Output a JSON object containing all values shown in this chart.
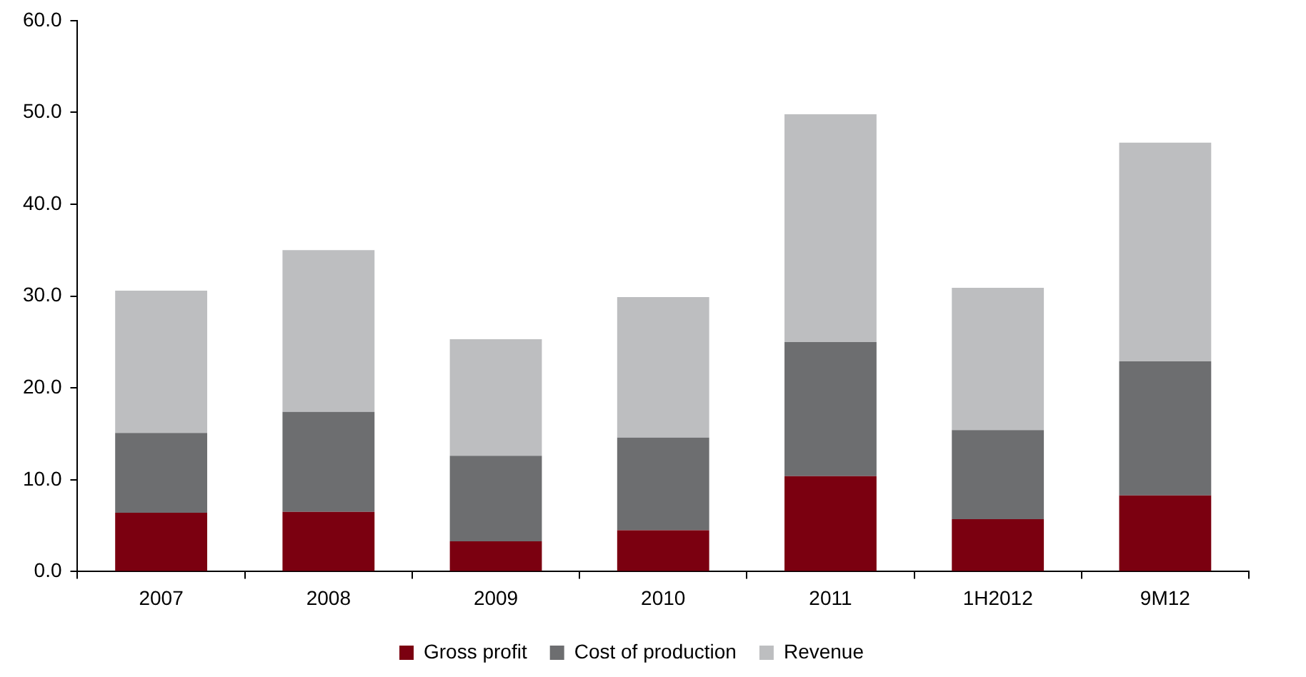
{
  "chart_data": {
    "type": "bar",
    "stacked": true,
    "categories": [
      "2007",
      "2008",
      "2009",
      "2010",
      "2011",
      "1H2012",
      "9M12"
    ],
    "series": [
      {
        "name": "Gross profit",
        "color": "#7b0010",
        "values": [
          6.4,
          6.5,
          3.3,
          4.5,
          10.4,
          5.7,
          8.3
        ]
      },
      {
        "name": "Cost of production",
        "color": "#6d6e70",
        "values": [
          8.7,
          10.9,
          9.3,
          10.1,
          14.6,
          9.7,
          14.6
        ]
      },
      {
        "name": "Revenue",
        "color": "#bdbec0",
        "values": [
          15.5,
          17.6,
          12.7,
          15.3,
          24.8,
          15.5,
          23.8
        ]
      }
    ],
    "ylim": [
      0,
      60
    ],
    "yticks": [
      {
        "value": 0,
        "label": "0.0"
      },
      {
        "value": 10,
        "label": "10.0"
      },
      {
        "value": 20,
        "label": "20.0"
      },
      {
        "value": 30,
        "label": "30.0"
      },
      {
        "value": 40,
        "label": "40.0"
      },
      {
        "value": 50,
        "label": "50.0"
      },
      {
        "value": 60,
        "label": "60.0"
      }
    ],
    "grid": false,
    "legend": "bottom"
  }
}
